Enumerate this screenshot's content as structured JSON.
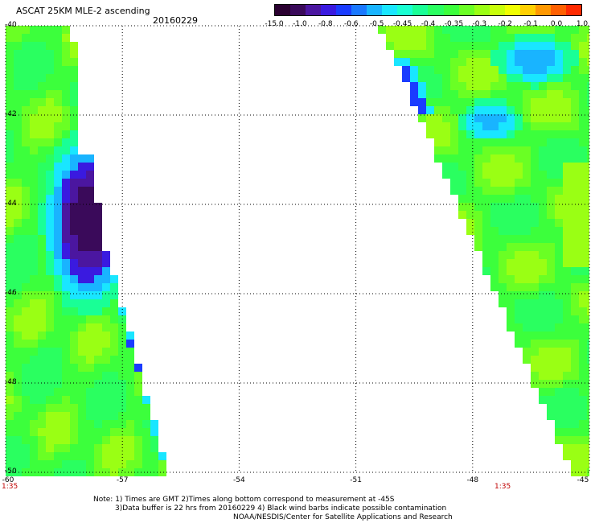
{
  "header": {
    "title": "ASCAT 25KM MLE-2 ascending",
    "date": "20160229"
  },
  "colorbar": {
    "colors": [
      "#2a0030",
      "#3a0a5a",
      "#4b16a0",
      "#3a1ae0",
      "#1a3cff",
      "#1a78ff",
      "#19b4ff",
      "#19e6ff",
      "#19ffd2",
      "#19ff96",
      "#2aff60",
      "#3cff3c",
      "#6aff24",
      "#9aff14",
      "#c8ff0a",
      "#f0ff00",
      "#ffd000",
      "#ff9800",
      "#ff6000",
      "#ff2a00"
    ],
    "labels": [
      "-15.0",
      "-1.0",
      "-0.8",
      "-0.6",
      "-0.5",
      "-0.45",
      "-0.4",
      "-0.35",
      "-0.3",
      "-0.2",
      "-0.1",
      "0.0",
      "1.0"
    ]
  },
  "chart_data": {
    "type": "heatmap",
    "title": "ASCAT 25KM MLE-2 ascending",
    "subtitle": "20160229",
    "xlim": [
      -60,
      -45
    ],
    "ylim": [
      -50,
      -40
    ],
    "x_ticks": [
      "-60",
      "-57",
      "-54",
      "-51",
      "-48",
      "-45"
    ],
    "y_ticks": [
      "-40",
      "-42",
      "-44",
      "-46",
      "-48",
      "-50"
    ],
    "time_labels": [
      "1:35",
      "1:35"
    ],
    "swaths": [
      {
        "name": "west",
        "description": "MLE values mostly -0.35 to -0.2; strong low region (-15.0 to -0.8) near lon -58.5, lat -43.5 to -45.5",
        "typical_value": -0.3,
        "min_value": -15.0
      },
      {
        "name": "east",
        "description": "MLE values mostly -0.35 to -0.2; patches of -0.45 near lon -47.5, lat -41 to -42",
        "typical_value": -0.3,
        "min_value": -0.6
      }
    ]
  },
  "notes": {
    "line1": "Note: 1) Times are GMT 2)Times along bottom correspond to measurement at -45S",
    "line2": "3)Data buffer is 22 hrs from 20160229 4) Black wind barbs indicate possible contamination",
    "line3": "NOAA/NESDIS/Center for Satellite Applications and Research"
  }
}
